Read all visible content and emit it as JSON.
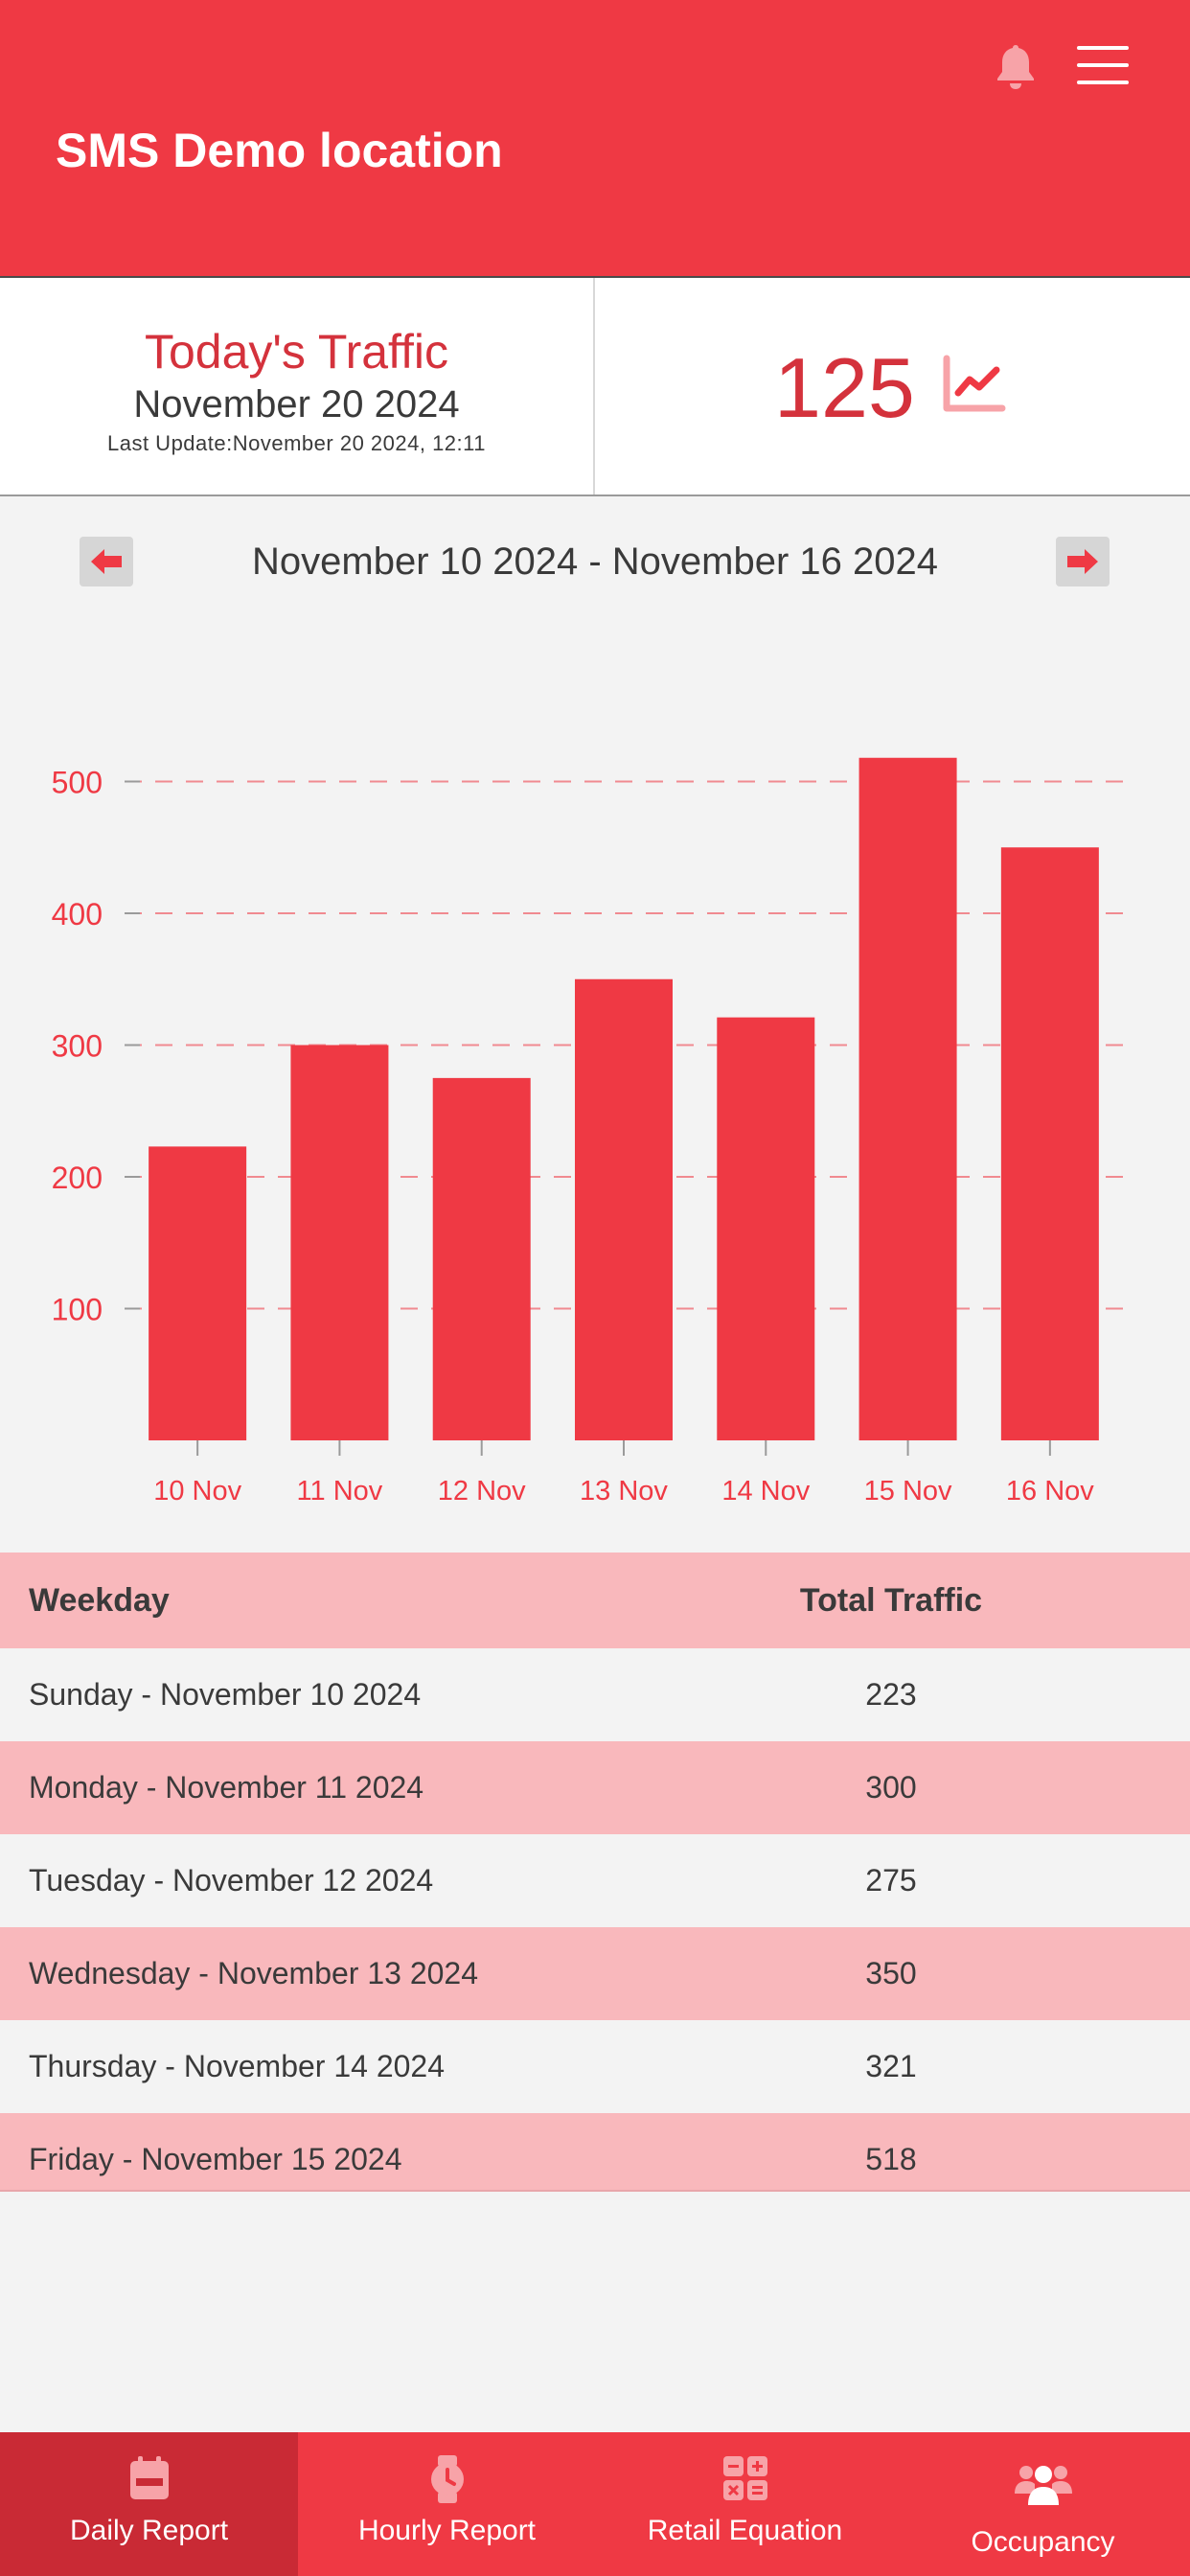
{
  "header": {
    "title": "SMS Demo location",
    "icons": [
      "bell-icon",
      "menu-icon"
    ]
  },
  "today": {
    "title": "Today's Traffic",
    "date": "November 20 2024",
    "last_update": "Last Update:November 20 2024, 12:11",
    "count": "125",
    "icon": "trend-chart-icon"
  },
  "week": {
    "range": "November 10 2024 - November 16 2024",
    "prev_icon": "arrow-left-icon",
    "next_icon": "arrow-right-icon"
  },
  "chart_data": {
    "type": "bar",
    "categories": [
      "10 Nov",
      "11 Nov",
      "12 Nov",
      "13 Nov",
      "14 Nov",
      "15 Nov",
      "16 Nov"
    ],
    "values": [
      223,
      300,
      275,
      350,
      321,
      518,
      450
    ],
    "yticks": [
      100,
      200,
      300,
      400,
      500
    ],
    "ylim": [
      0,
      530
    ],
    "grid": "dashed horizontal",
    "color": "#ef3944"
  },
  "table": {
    "headers": [
      "Weekday",
      "Total Traffic"
    ],
    "rows": [
      [
        "Sunday - November 10 2024",
        "223"
      ],
      [
        "Monday - November 11 2024",
        "300"
      ],
      [
        "Tuesday - November 12 2024",
        "275"
      ],
      [
        "Wednesday - November 13 2024",
        "350"
      ],
      [
        "Thursday - November 14 2024",
        "321"
      ],
      [
        "Friday - November 15 2024",
        "518"
      ]
    ]
  },
  "tabs": [
    {
      "label": "Daily Report",
      "icon": "calendar-icon",
      "active": true
    },
    {
      "label": "Hourly Report",
      "icon": "watch-icon",
      "active": false
    },
    {
      "label": "Retail Equation",
      "icon": "calculator-icon",
      "active": false
    },
    {
      "label": "Occupancy",
      "icon": "people-icon",
      "active": false
    }
  ],
  "colors": {
    "primary": "#ef3944",
    "primary_dark": "#c92a35",
    "accent_text": "#d4323c",
    "row_alt": "#f9b8bc",
    "background": "#f3f3f3"
  }
}
